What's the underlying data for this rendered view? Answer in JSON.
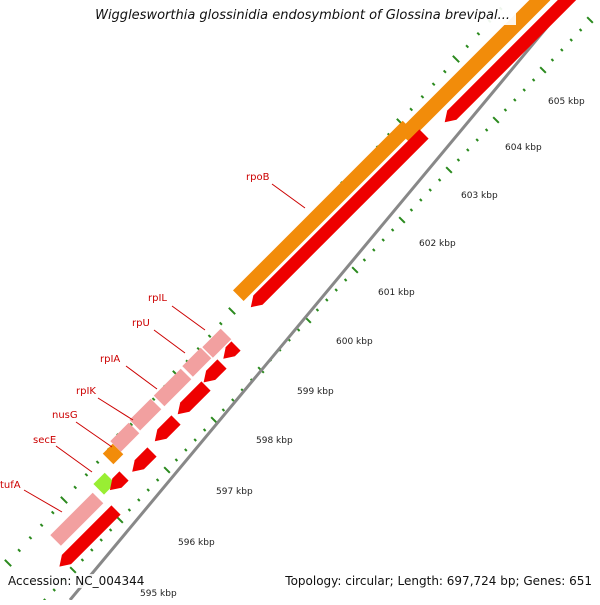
{
  "title": "Wigglesworthia glossinidia endosymbiont of Glossina brevipal...",
  "footer": {
    "accession": "Accession: NC_004344",
    "summary": "Topology: circular; Length: 697,724 bp; Genes: 651"
  },
  "colors": {
    "gene_fwd": "#f28c0a",
    "gene_rev": "#ee0000",
    "gene_light": "#f2a0a0",
    "gene_green": "#99ee33",
    "backbone": "#888888",
    "tick": "#2b8a1e",
    "label": "#cc0000"
  },
  "gene_labels": [
    "rpoB",
    "rpIL",
    "rpU",
    "rpIA",
    "rpIK",
    "nusG",
    "secE",
    "tufA"
  ],
  "tick_labels": [
    "605 kbp",
    "604 kbp",
    "603 kbp",
    "602 kbp",
    "601 kbp",
    "600 kbp",
    "599 kbp",
    "598 kbp",
    "597 kbp",
    "596 kbp",
    "595 kbp"
  ]
}
